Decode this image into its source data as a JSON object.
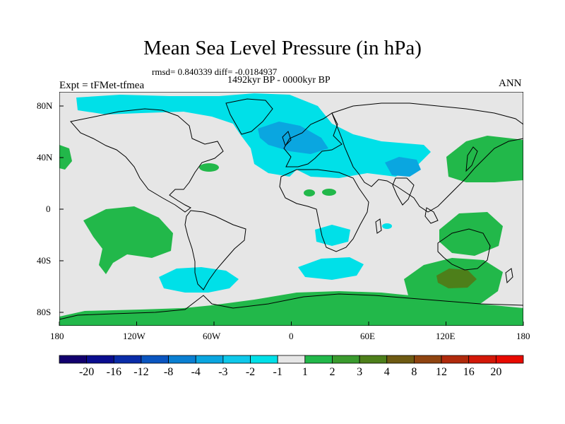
{
  "title": "Mean Sea Level Pressure (in hPa)",
  "stats_line": "rmsd= 0.840339 diff= -0.0184937",
  "period": "1492kyr BP - 0000kyr BP",
  "experiment": "Expt = tFMet-tfmea",
  "season": "ANN",
  "axes": {
    "x_ticks": [
      "180",
      "120W",
      "60W",
      "0",
      "60E",
      "120E",
      "180"
    ],
    "y_ticks": [
      "80N",
      "40N",
      "0",
      "40S",
      "80S"
    ]
  },
  "colorbar": {
    "labels": [
      "-20",
      "-16",
      "-12",
      "-8",
      "-4",
      "-3",
      "-2",
      "-1",
      "1",
      "2",
      "3",
      "4",
      "8",
      "12",
      "16",
      "20"
    ],
    "colors": [
      "#12006e",
      "#0a0d8f",
      "#0a2ca8",
      "#0a55c0",
      "#0a7fd2",
      "#0aa6e0",
      "#0fc8ea",
      "#00e0e8",
      "#e6e6e6",
      "#22b84a",
      "#3a9b2e",
      "#4d7f1a",
      "#6e5a12",
      "#8f4410",
      "#b02a0c",
      "#d31808",
      "#e80a00"
    ]
  },
  "colors": {
    "background": "#e6e6e6",
    "negative_small": "#00e0e8",
    "negative_med": "#0aa6e0",
    "negative_large": "#0a7fd2",
    "positive_small": "#22b84a",
    "positive_med": "#4d7f1a"
  }
}
